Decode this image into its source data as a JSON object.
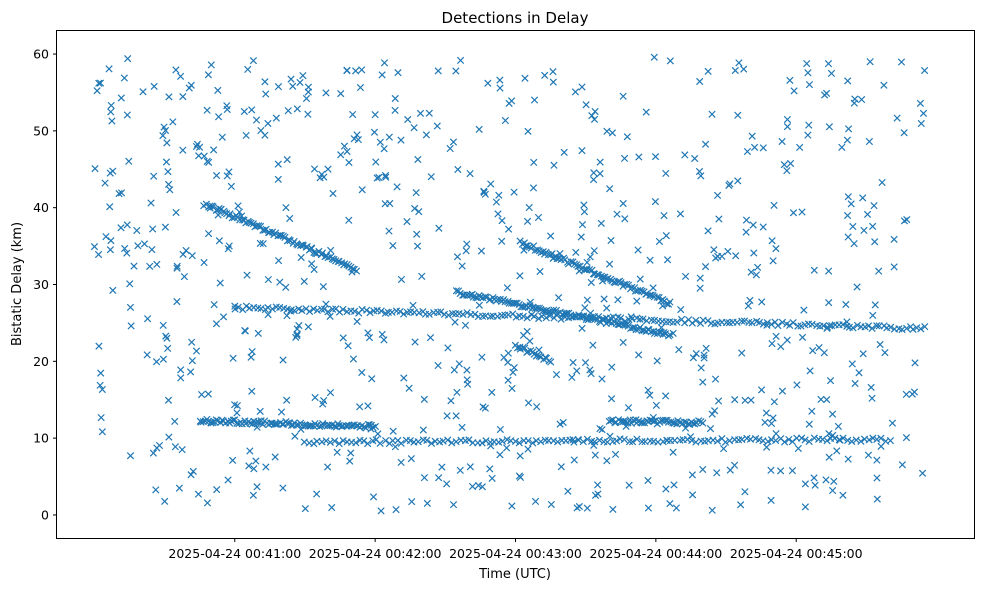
{
  "chart_data": {
    "type": "scatter",
    "title": "Detections in Delay",
    "xlabel": "Time (UTC)",
    "ylabel": "Bistatic Delay (km)",
    "marker": "x",
    "color": "#1f77b4",
    "x_unit": "seconds after 2025-04-24 00:40:00",
    "xlim": [
      -16,
      376
    ],
    "ylim": [
      -3,
      63
    ],
    "xticks": [
      {
        "value": 60,
        "label": "2025-04-24 00:41:00"
      },
      {
        "value": 120,
        "label": "2025-04-24 00:42:00"
      },
      {
        "value": 180,
        "label": "2025-04-24 00:43:00"
      },
      {
        "value": 240,
        "label": "2025-04-24 00:44:00"
      },
      {
        "value": 300,
        "label": "2025-04-24 00:45:00"
      }
    ],
    "yticks": [
      0,
      10,
      20,
      30,
      40,
      50,
      60
    ],
    "grid": false,
    "tracks": [
      {
        "name": "track-a",
        "x_start": 47,
        "x_end": 112,
        "y_start": 40.5,
        "y_end": 32.0,
        "step": 0.8
      },
      {
        "name": "track-b",
        "x_start": 155,
        "x_end": 246,
        "y_start": 29.0,
        "y_end": 23.5,
        "step": 0.8
      },
      {
        "name": "track-c",
        "x_start": 182,
        "x_end": 246,
        "y_start": 35.5,
        "y_end": 27.5,
        "step": 0.8
      },
      {
        "name": "track-d",
        "x_start": 180,
        "x_end": 195,
        "y_start": 22.0,
        "y_end": 20.0,
        "step": 0.8
      },
      {
        "name": "track-e",
        "x_start": 60,
        "x_end": 355,
        "y_start": 27.0,
        "y_end": 24.3,
        "step": 1.6
      },
      {
        "name": "track-f",
        "x_start": 45,
        "x_end": 120,
        "y_start": 12.3,
        "y_end": 11.5,
        "step": 0.8
      },
      {
        "name": "track-g",
        "x_start": 90,
        "x_end": 340,
        "y_start": 9.5,
        "y_end": 9.8,
        "step": 1.8
      },
      {
        "name": "track-h",
        "x_start": 220,
        "x_end": 260,
        "y_start": 12.2,
        "y_end": 12.0,
        "step": 0.8
      }
    ],
    "noise": {
      "count": 760,
      "x_range": [
        0,
        355
      ],
      "y_range": [
        0.5,
        59.8
      ]
    }
  }
}
